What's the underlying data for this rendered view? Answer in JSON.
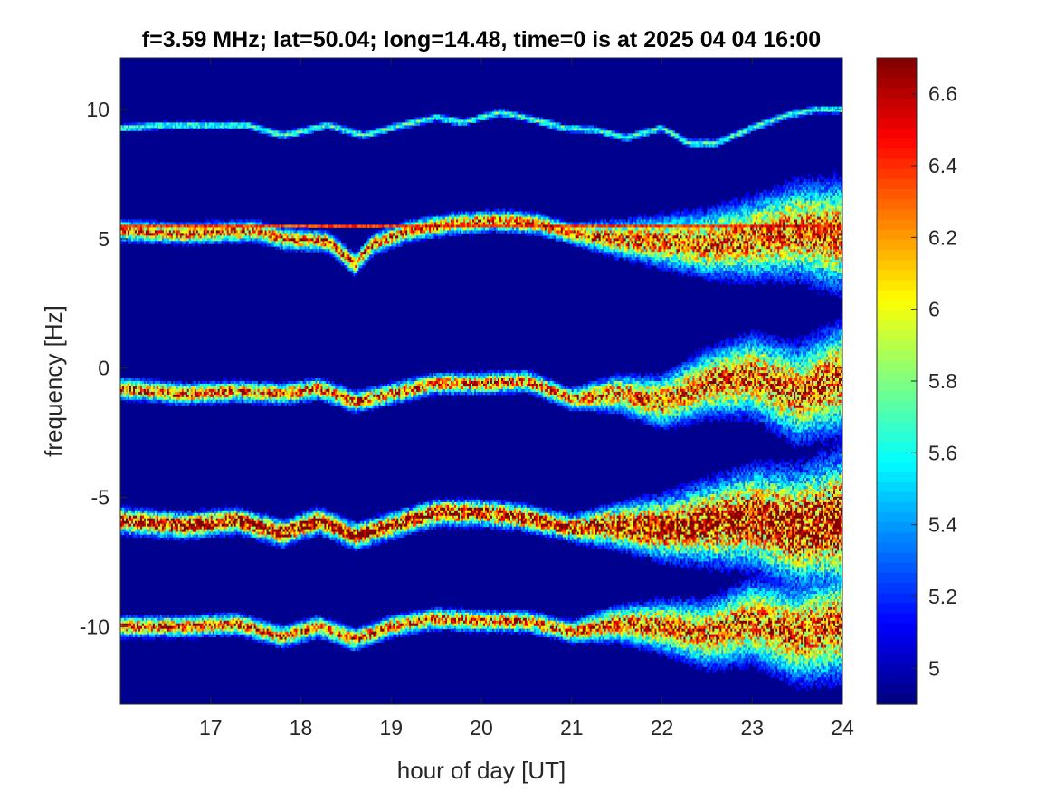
{
  "chart_data": {
    "type": "heatmap",
    "title": "f=3.59 MHz;  lat=50.04; long=14.48, time=0 is at 2025 04 04 16:00",
    "xlabel": "hour of day [UT]",
    "ylabel": "frequency [Hz]",
    "xlim": [
      16,
      24
    ],
    "ylim": [
      -13,
      12
    ],
    "xticks": [
      17,
      18,
      19,
      20,
      21,
      22,
      23,
      24
    ],
    "xtick_labels": [
      "17",
      "18",
      "19",
      "20",
      "21",
      "22",
      "23",
      "24"
    ],
    "yticks": [
      10,
      5,
      0,
      -5,
      -10
    ],
    "ytick_labels": [
      "10",
      "5",
      "0",
      "-5",
      "-10"
    ],
    "colorbar": {
      "range": [
        4.9,
        6.7
      ],
      "ticks": [
        6.6,
        6.4,
        6.2,
        6.0,
        5.8,
        5.6,
        5.4,
        5.2,
        5.0
      ],
      "tick_labels": [
        "6.6",
        "6.4",
        "6.2",
        "6",
        "5.8",
        "5.6",
        "5.4",
        "5.2",
        "5"
      ],
      "colormap": "jet"
    },
    "background_value": 4.9,
    "colors": {
      "background": "#00008f",
      "axis": "#262626"
    },
    "traces": [
      {
        "points": [
          [
            16.1,
            9.3
          ],
          [
            16.5,
            9.4
          ],
          [
            17.0,
            9.4
          ],
          [
            17.4,
            9.4
          ],
          [
            17.8,
            9.0
          ],
          [
            18.3,
            9.4
          ],
          [
            18.7,
            9.0
          ],
          [
            19.0,
            9.3
          ],
          [
            19.5,
            9.7
          ],
          [
            19.8,
            9.5
          ],
          [
            20.2,
            9.9
          ],
          [
            20.6,
            9.6
          ],
          [
            20.9,
            9.3
          ],
          [
            21.3,
            9.2
          ],
          [
            21.6,
            8.9
          ],
          [
            22.0,
            9.3
          ],
          [
            22.3,
            8.7
          ],
          [
            22.6,
            8.7
          ],
          [
            23.0,
            9.3
          ],
          [
            23.4,
            9.8
          ],
          [
            23.7,
            10.0
          ]
        ],
        "spread": 0.1,
        "intensity": 0.45,
        "noise": 0.3
      },
      {
        "points": [
          [
            16.0,
            5.5
          ],
          [
            17.0,
            5.5
          ],
          [
            18.0,
            5.5
          ],
          [
            19.0,
            5.5
          ],
          [
            20.0,
            5.5
          ],
          [
            21.0,
            5.5
          ],
          [
            22.0,
            5.5
          ],
          [
            23.0,
            5.5
          ],
          [
            24.0,
            5.5
          ]
        ],
        "spread": 0.04,
        "intensity": 0.85,
        "noise": 0.1
      },
      {
        "points": [
          [
            16.0,
            5.3
          ],
          [
            16.7,
            5.2
          ],
          [
            17.5,
            5.3
          ],
          [
            17.8,
            5.0
          ],
          [
            18.3,
            4.9
          ],
          [
            18.6,
            4.0
          ],
          [
            18.8,
            4.8
          ],
          [
            19.2,
            5.3
          ],
          [
            19.7,
            5.6
          ],
          [
            20.2,
            5.7
          ],
          [
            20.6,
            5.6
          ],
          [
            21.0,
            5.2
          ],
          [
            21.5,
            5.0
          ],
          [
            22.0,
            4.9
          ],
          [
            22.5,
            4.8
          ],
          [
            23.0,
            5.0
          ],
          [
            23.5,
            5.3
          ],
          [
            24.0,
            5.1
          ]
        ],
        "spread": 0.25,
        "intensity": 0.8,
        "noise": 0.4,
        "grow": true
      },
      {
        "points": [
          [
            16.0,
            -0.8
          ],
          [
            16.7,
            -1.0
          ],
          [
            17.3,
            -0.9
          ],
          [
            17.8,
            -1.0
          ],
          [
            18.2,
            -0.8
          ],
          [
            18.6,
            -1.3
          ],
          [
            19.0,
            -1.0
          ],
          [
            19.5,
            -0.6
          ],
          [
            20.0,
            -0.6
          ],
          [
            20.5,
            -0.5
          ],
          [
            21.0,
            -1.2
          ],
          [
            21.5,
            -1.0
          ],
          [
            22.0,
            -1.3
          ],
          [
            22.5,
            -0.6
          ],
          [
            23.0,
            -0.3
          ],
          [
            23.5,
            -1.0
          ],
          [
            24.0,
            -0.4
          ]
        ],
        "spread": 0.25,
        "intensity": 0.8,
        "noise": 0.4,
        "grow": true
      },
      {
        "points": [
          [
            16.0,
            -5.9
          ],
          [
            16.7,
            -6.1
          ],
          [
            17.3,
            -5.9
          ],
          [
            17.8,
            -6.4
          ],
          [
            18.2,
            -5.9
          ],
          [
            18.6,
            -6.5
          ],
          [
            19.0,
            -6.1
          ],
          [
            19.5,
            -5.6
          ],
          [
            20.0,
            -5.6
          ],
          [
            20.5,
            -5.8
          ],
          [
            21.0,
            -6.2
          ],
          [
            21.5,
            -6.1
          ],
          [
            22.0,
            -6.2
          ],
          [
            22.5,
            -6.0
          ],
          [
            23.0,
            -5.8
          ],
          [
            23.5,
            -6.2
          ],
          [
            24.0,
            -5.9
          ]
        ],
        "spread": 0.3,
        "intensity": 0.95,
        "noise": 0.45,
        "grow": true
      },
      {
        "points": [
          [
            16.0,
            -10.0
          ],
          [
            16.7,
            -10.0
          ],
          [
            17.3,
            -9.9
          ],
          [
            17.8,
            -10.4
          ],
          [
            18.2,
            -10.0
          ],
          [
            18.6,
            -10.5
          ],
          [
            19.0,
            -10.0
          ],
          [
            19.5,
            -9.7
          ],
          [
            20.0,
            -9.8
          ],
          [
            20.5,
            -9.8
          ],
          [
            21.0,
            -10.2
          ],
          [
            21.5,
            -9.9
          ],
          [
            22.0,
            -10.0
          ],
          [
            22.5,
            -10.3
          ],
          [
            23.0,
            -9.8
          ],
          [
            23.5,
            -10.3
          ],
          [
            24.0,
            -9.9
          ]
        ],
        "spread": 0.25,
        "intensity": 0.8,
        "noise": 0.4,
        "grow": true
      }
    ]
  }
}
